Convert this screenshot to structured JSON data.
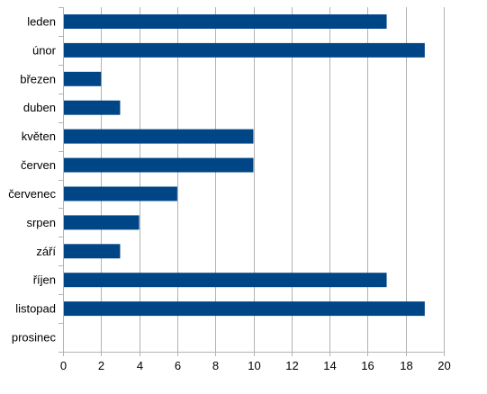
{
  "chart_data": {
    "type": "bar",
    "orientation": "horizontal",
    "categories": [
      "leden",
      "únor",
      "březen",
      "duben",
      "květen",
      "červen",
      "červenec",
      "srpen",
      "září",
      "říjen",
      "listopad",
      "prosinec"
    ],
    "values": [
      17,
      19,
      2,
      3,
      10,
      10,
      6,
      4,
      3,
      17,
      19,
      0
    ],
    "xlim": [
      0,
      20
    ],
    "x_ticks": [
      0,
      2,
      4,
      6,
      8,
      10,
      12,
      14,
      16,
      18,
      20
    ],
    "grid": true,
    "legend": "none",
    "bar_color": "#004586",
    "grid_color": "#b3b3b3",
    "title": "",
    "xlabel": "",
    "ylabel": ""
  }
}
